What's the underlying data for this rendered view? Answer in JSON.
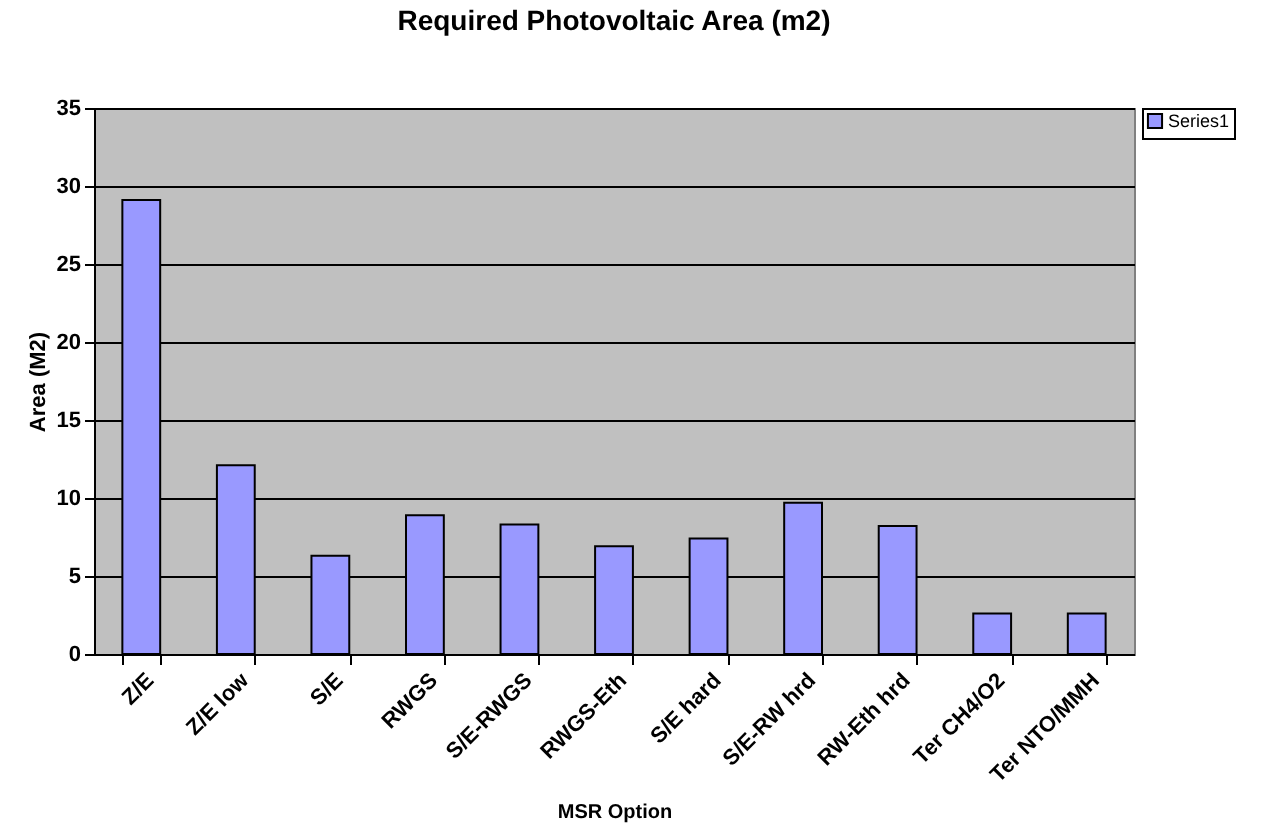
{
  "chart_data": {
    "type": "bar",
    "title": "Required Photovoltaic Area (m2)",
    "xlabel": "MSR Option",
    "ylabel": "Area (M2)",
    "categories": [
      "Z/E",
      "Z/E low",
      "S/E",
      "RWGS",
      "S/E-RWGS",
      "RWGS-Eth",
      "S/E hard",
      "S/E-RW hrd",
      "RW-Eth hrd",
      "Ter CH4/O2",
      "Ter NTO/MMH"
    ],
    "series": [
      {
        "name": "Series1",
        "color": "#9999ff",
        "values": [
          29.1,
          12.1,
          6.3,
          8.9,
          8.3,
          6.9,
          7.4,
          9.7,
          8.2,
          2.6,
          2.6
        ]
      }
    ],
    "ylim": [
      0,
      35
    ],
    "yticks": [
      0,
      5,
      10,
      15,
      20,
      25,
      30,
      35
    ],
    "grid": "y",
    "legend": "right"
  }
}
